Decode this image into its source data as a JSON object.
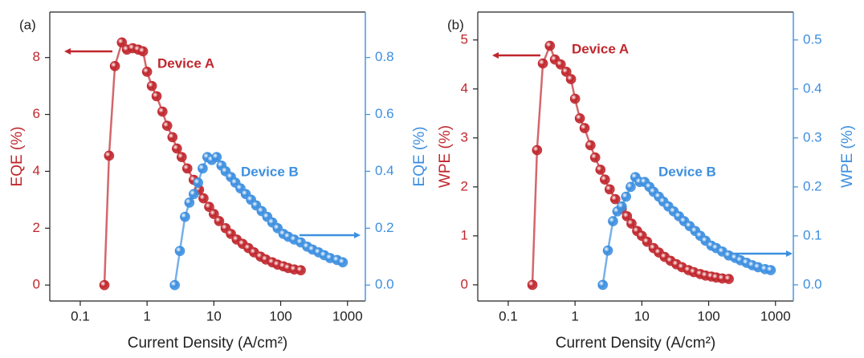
{
  "chart_data": [
    {
      "type": "scatter",
      "label": "(a)",
      "xlabel": "Current Density (A/cm²)",
      "ylabel": "EQE (%)",
      "y2label": "EQE (%)",
      "xlog": true,
      "xlim": [
        0.035,
        1850
      ],
      "xticks": [
        0.1,
        1,
        10,
        100,
        1000
      ],
      "ylim": [
        -0.56,
        9.6
      ],
      "yticks": [
        0,
        2,
        4,
        6,
        8
      ],
      "y2lim": [
        -0.056,
        0.96
      ],
      "y2ticks": [
        {
          "value": 0,
          "label": "0.0"
        },
        0.2,
        0.4,
        0.6,
        0.8
      ],
      "series": [
        {
          "name": "Device A",
          "color": "#c0272d",
          "x": [
            0.23,
            0.27,
            0.33,
            0.42,
            0.5,
            0.61,
            0.74,
            0.87,
            1,
            1.18,
            1.39,
            1.7,
            2.0,
            2.4,
            2.8,
            3.3,
            4,
            5,
            6,
            7,
            8.5,
            10,
            12,
            15,
            18,
            22,
            27,
            33,
            40,
            50,
            60,
            75,
            90,
            110,
            130,
            160,
            200
          ],
          "values": [
            0,
            4.55,
            7.7,
            8.53,
            8.28,
            8.33,
            8.28,
            8.22,
            7.5,
            7.0,
            6.64,
            6.1,
            5.6,
            5.2,
            4.8,
            4.5,
            4.1,
            3.7,
            3.35,
            3.05,
            2.75,
            2.5,
            2.25,
            2.0,
            1.8,
            1.6,
            1.45,
            1.3,
            1.15,
            1.0,
            0.9,
            0.8,
            0.72,
            0.66,
            0.6,
            0.55,
            0.52
          ]
        },
        {
          "name": "Device B",
          "color": "#3d8fe0",
          "axis": "y2",
          "x": [
            2.6,
            3.1,
            3.7,
            4.3,
            5,
            5.8,
            6.8,
            8,
            9.3,
            11,
            13,
            15,
            18,
            21,
            25,
            30,
            36,
            43,
            52,
            63,
            75,
            90,
            110,
            130,
            160,
            200,
            250,
            300,
            370,
            450,
            550,
            700,
            850
          ],
          "values": [
            0,
            0.12,
            0.24,
            0.29,
            0.32,
            0.36,
            0.41,
            0.45,
            0.44,
            0.45,
            0.42,
            0.4,
            0.38,
            0.36,
            0.34,
            0.32,
            0.3,
            0.28,
            0.26,
            0.24,
            0.22,
            0.2,
            0.18,
            0.17,
            0.16,
            0.15,
            0.135,
            0.125,
            0.115,
            0.105,
            0.095,
            0.088,
            0.08
          ]
        }
      ]
    },
    {
      "type": "scatter",
      "label": "(b)",
      "xlabel": "Current Density (A/cm²)",
      "ylabel": "WPE (%)",
      "y2label": "WPE (%)",
      "xlog": true,
      "xlim": [
        0.035,
        1850
      ],
      "xticks": [
        0.1,
        1,
        10,
        100,
        1000
      ],
      "ylim": [
        -0.33,
        5.57
      ],
      "yticks": [
        0,
        1,
        2,
        3,
        4,
        5
      ],
      "y2lim": [
        -0.033,
        0.557
      ],
      "y2ticks": [
        {
          "value": 0,
          "label": "0.0"
        },
        0.1,
        0.2,
        0.3,
        0.4,
        0.5
      ],
      "series": [
        {
          "name": "Device A",
          "color": "#c0272d",
          "x": [
            0.23,
            0.27,
            0.33,
            0.42,
            0.5,
            0.61,
            0.74,
            0.87,
            1,
            1.18,
            1.39,
            1.7,
            2.0,
            2.4,
            2.8,
            3.3,
            4,
            5,
            6,
            7,
            8.5,
            10,
            12,
            15,
            18,
            22,
            27,
            33,
            40,
            50,
            60,
            75,
            90,
            110,
            130,
            160,
            200
          ],
          "values": [
            0,
            2.75,
            4.52,
            4.88,
            4.6,
            4.5,
            4.35,
            4.2,
            3.8,
            3.4,
            3.2,
            2.85,
            2.6,
            2.35,
            2.15,
            1.95,
            1.75,
            1.55,
            1.4,
            1.25,
            1.1,
            1.0,
            0.88,
            0.75,
            0.66,
            0.57,
            0.49,
            0.42,
            0.36,
            0.3,
            0.26,
            0.22,
            0.19,
            0.17,
            0.15,
            0.13,
            0.12
          ]
        },
        {
          "name": "Device B",
          "color": "#3d8fe0",
          "axis": "y2",
          "x": [
            2.6,
            3.1,
            3.7,
            4.3,
            5,
            5.8,
            6.8,
            8,
            9.3,
            11,
            13,
            15,
            18,
            21,
            25,
            30,
            36,
            43,
            52,
            63,
            75,
            90,
            110,
            130,
            160,
            200,
            250,
            300,
            370,
            450,
            550,
            700,
            850
          ],
          "values": [
            0,
            0.07,
            0.13,
            0.15,
            0.16,
            0.18,
            0.2,
            0.22,
            0.21,
            0.21,
            0.2,
            0.19,
            0.18,
            0.17,
            0.16,
            0.15,
            0.14,
            0.13,
            0.12,
            0.11,
            0.1,
            0.09,
            0.08,
            0.075,
            0.068,
            0.06,
            0.055,
            0.05,
            0.045,
            0.04,
            0.036,
            0.032,
            0.03
          ]
        }
      ]
    }
  ]
}
